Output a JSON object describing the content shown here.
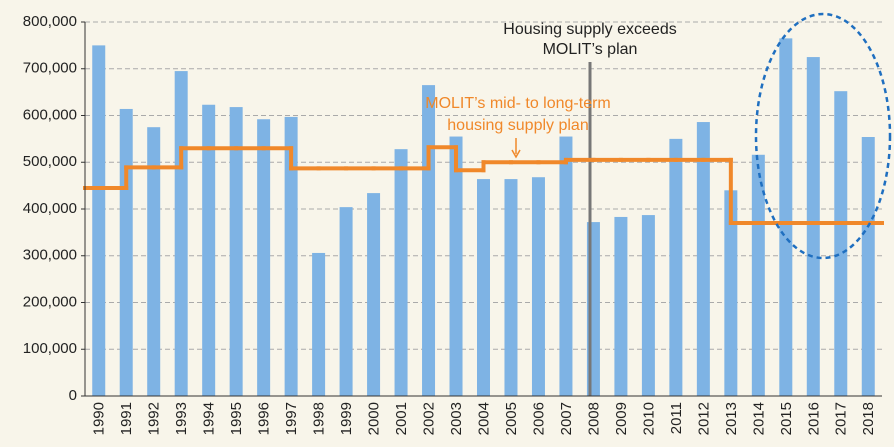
{
  "chart_data": {
    "type": "bar",
    "categories": [
      "1990",
      "1991",
      "1992",
      "1993",
      "1994",
      "1995",
      "1996",
      "1997",
      "1998",
      "1999",
      "2000",
      "2001",
      "2002",
      "2003",
      "2004",
      "2005",
      "2006",
      "2007",
      "2008",
      "2009",
      "2010",
      "2011",
      "2012",
      "2013",
      "2014",
      "2015",
      "2016",
      "2017",
      "2018"
    ],
    "series": [
      {
        "type": "bar",
        "color": "#7eb3e4",
        "values": [
          750000,
          614000,
          575000,
          695000,
          623000,
          618000,
          592000,
          597000,
          306000,
          404000,
          434000,
          528000,
          665000,
          555000,
          464000,
          464000,
          468000,
          555000,
          372000,
          383000,
          387000,
          550000,
          586000,
          440000,
          516000,
          765000,
          725000,
          652000,
          554000
        ]
      },
      {
        "type": "step",
        "color": "#f0882a",
        "values": [
          445000,
          489000,
          489000,
          530000,
          530000,
          530000,
          530000,
          487000,
          487000,
          487000,
          487000,
          487000,
          532000,
          483000,
          500000,
          500000,
          500000,
          505000,
          505000,
          505000,
          505000,
          505000,
          505000,
          370000,
          370000,
          370000,
          370000,
          370000,
          370000
        ]
      }
    ],
    "ylim": [
      0,
      800000
    ],
    "yticks": [
      0,
      {
        "value": 100000,
        "label": "100,000"
      },
      {
        "value": 200000,
        "label": "200,000"
      },
      {
        "value": 300000,
        "label": "300,000"
      },
      {
        "value": 400000,
        "label": "400,000"
      },
      {
        "value": 500000,
        "label": "500,000"
      },
      {
        "value": 600000,
        "label": "600,000"
      },
      {
        "value": 700000,
        "label": "700,000"
      },
      {
        "value": 800000,
        "label": "800,000"
      }
    ],
    "grid": true,
    "annotations": [
      {
        "lines": [
          "Housing supply exceeds",
          "MOLIT’s plan"
        ]
      },
      {
        "lines": [
          "MOLIT’s mid- to long-term",
          "housing supply plan"
        ]
      }
    ]
  }
}
